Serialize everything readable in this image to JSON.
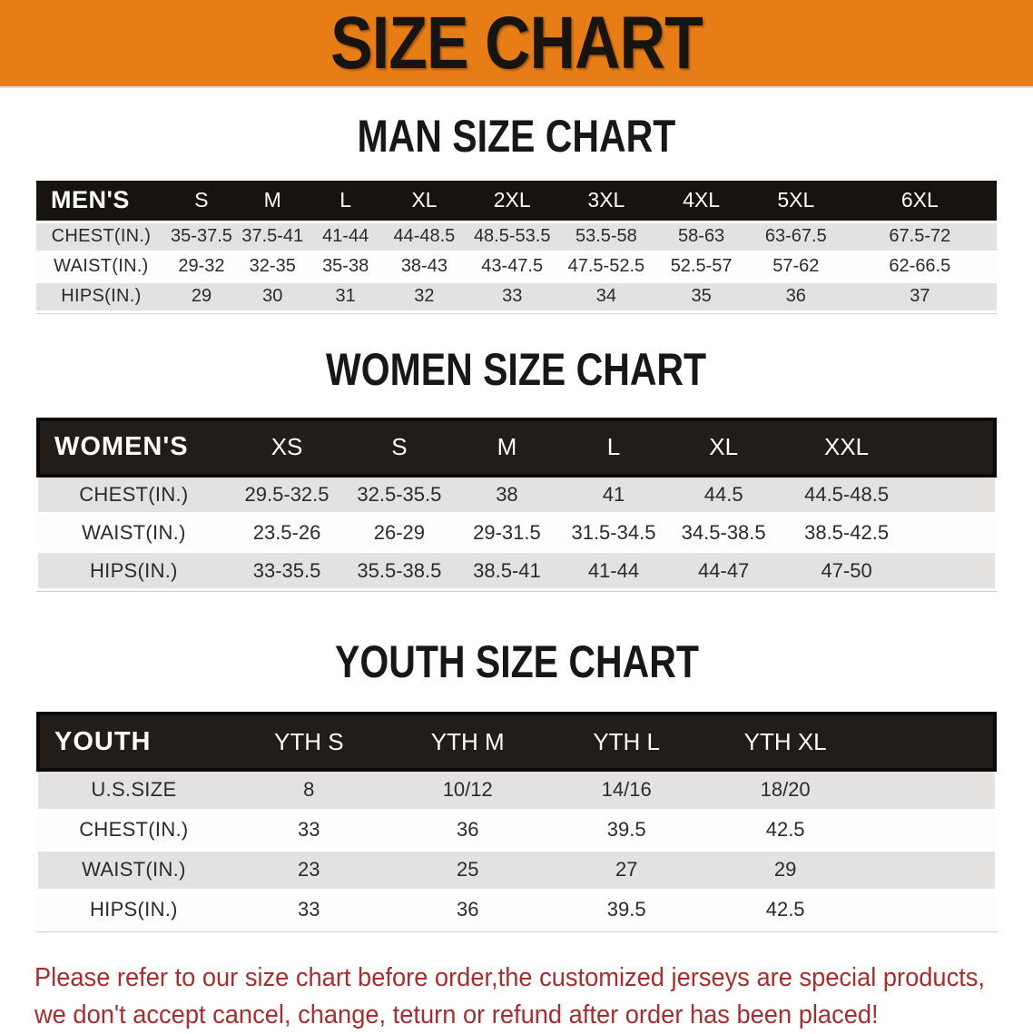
{
  "banner": {
    "title": "SIZE CHART"
  },
  "sections": [
    {
      "id": "men",
      "title": "MAN SIZE CHART",
      "header_label": "MEN'S",
      "columns": [
        "S",
        "M",
        "L",
        "XL",
        "2XL",
        "3XL",
        "4XL",
        "5XL",
        "6XL"
      ],
      "rows": [
        {
          "label": "CHEST(IN.)",
          "values": [
            "35-37.5",
            "37.5-41",
            "41-44",
            "44-48.5",
            "48.5-53.5",
            "53.5-58",
            "58-63",
            "63-67.5",
            "67.5-72"
          ]
        },
        {
          "label": "WAIST(IN.)",
          "values": [
            "29-32",
            "32-35",
            "35-38",
            "38-43",
            "43-47.5",
            "47.5-52.5",
            "52.5-57",
            "57-62",
            "62-66.5"
          ]
        },
        {
          "label": "HIPS(IN.)",
          "values": [
            "29",
            "30",
            "31",
            "32",
            "33",
            "34",
            "35",
            "36",
            "37"
          ]
        }
      ]
    },
    {
      "id": "women",
      "title": "WOMEN SIZE CHART",
      "header_label": "WOMEN'S",
      "columns": [
        "XS",
        "S",
        "M",
        "L",
        "XL",
        "XXL"
      ],
      "rows": [
        {
          "label": "CHEST(IN.)",
          "values": [
            "29.5-32.5",
            "32.5-35.5",
            "38",
            "41",
            "44.5",
            "44.5-48.5"
          ]
        },
        {
          "label": "WAIST(IN.)",
          "values": [
            "23.5-26",
            "26-29",
            "29-31.5",
            "31.5-34.5",
            "34.5-38.5",
            "38.5-42.5"
          ]
        },
        {
          "label": "HIPS(IN.)",
          "values": [
            "33-35.5",
            "35.5-38.5",
            "38.5-41",
            "41-44",
            "44-47",
            "47-50"
          ]
        }
      ]
    },
    {
      "id": "youth",
      "title": "YOUTH SIZE CHART",
      "header_label": "YOUTH",
      "columns": [
        "YTH S",
        "YTH M",
        "YTH L",
        "YTH XL"
      ],
      "rows": [
        {
          "label": "U.S.SIZE",
          "values": [
            "8",
            "10/12",
            "14/16",
            "18/20"
          ]
        },
        {
          "label": "CHEST(IN.)",
          "values": [
            "33",
            "36",
            "39.5",
            "42.5"
          ]
        },
        {
          "label": "WAIST(IN.)",
          "values": [
            "23",
            "25",
            "27",
            "29"
          ]
        },
        {
          "label": "HIPS(IN.)",
          "values": [
            "33",
            "36",
            "39.5",
            "42.5"
          ]
        }
      ]
    }
  ],
  "disclaimer": {
    "line1": "Please refer to our size chart before order,the customized jerseys are special products,",
    "line2": "we don't accept cancel, change, teturn or refund after order has been placed!"
  },
  "colors": {
    "banner-orange": "#e67d16",
    "header-black": "#17130e",
    "row-gray": "#e3e2e0",
    "disclaimer-red": "#a52f2f"
  }
}
